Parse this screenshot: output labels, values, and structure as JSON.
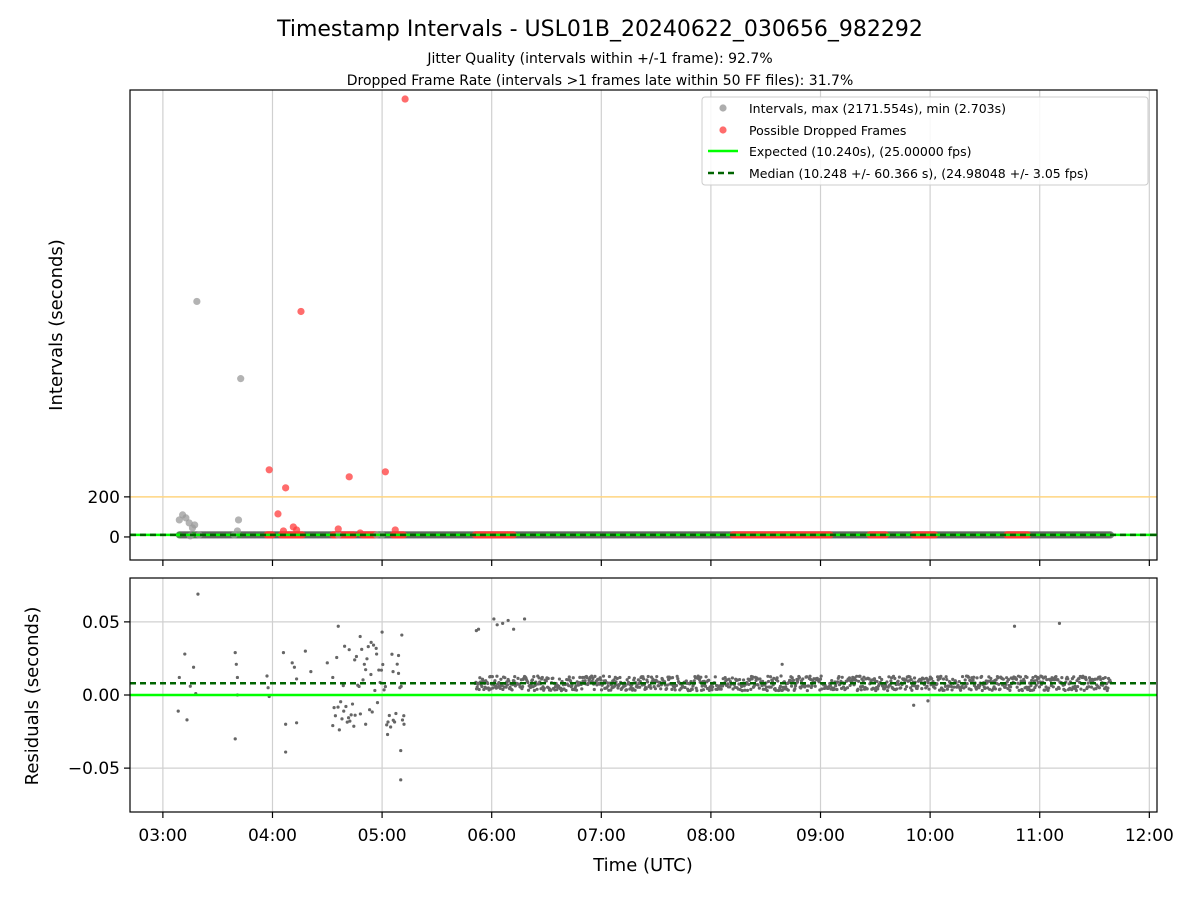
{
  "chart_data": {
    "type": "scatter",
    "title": "Timestamp Intervals - USL01B_20240622_030656_982292",
    "subtitle_1": "Jitter Quality (intervals within +/-1 frame): 92.7%",
    "subtitle_2": "Dropped Frame Rate (intervals >1 frames late within 50 FF files): 31.7%",
    "xlabel": "Time (UTC)",
    "x_ticks": [
      "03:00",
      "04:00",
      "05:00",
      "06:00",
      "07:00",
      "08:00",
      "09:00",
      "10:00",
      "11:00",
      "12:00"
    ],
    "x_range_hours": [
      2.7,
      12.07
    ],
    "grid": true,
    "legend_position": "top-right",
    "top_panel": {
      "ylabel": "Intervals (seconds)",
      "y_ticks": [
        200,
        0
      ],
      "ylim": [
        -115,
        2230
      ],
      "threshold_line": 200,
      "threshold_color": "#ffd580",
      "expected_value": 10.24,
      "median_value": 10.248,
      "legend": [
        "Intervals, max (2171.554s), min (2.703s)",
        "Possible Dropped Frames",
        "Expected (10.240s), (25.00000 fps)",
        "Median (10.248 +/- 60.366 s), (24.98048 +/- 3.05 fps)"
      ],
      "series": [
        {
          "name": "Intervals, max (2171.554s), min (2.703s)",
          "color": "#999999",
          "points": [
            [
              3.15,
              85
            ],
            [
              3.18,
              110
            ],
            [
              3.21,
              95
            ],
            [
              3.24,
              70
            ],
            [
              3.27,
              45
            ],
            [
              3.29,
              60
            ],
            [
              3.33,
              10
            ],
            [
              3.25,
              5
            ],
            [
              3.31,
              1175
            ],
            [
              3.65,
              10
            ],
            [
              3.68,
              30
            ],
            [
              3.69,
              85
            ],
            [
              3.71,
              790
            ],
            [
              4.6,
              10
            ],
            [
              4.95,
              10
            ],
            [
              5.0,
              10
            ]
          ],
          "band": {
            "x_start": 3.15,
            "x_end": 11.65,
            "y": 10.24,
            "color": "#666666"
          }
        },
        {
          "name": "Possible Dropped Frames",
          "color": "#ff3b3b",
          "points": [
            [
              5.21,
              2185
            ],
            [
              4.26,
              1125
            ],
            [
              3.97,
              335
            ],
            [
              5.03,
              325
            ],
            [
              4.7,
              300
            ],
            [
              4.12,
              245
            ],
            [
              4.05,
              115
            ],
            [
              4.19,
              50
            ],
            [
              4.22,
              35
            ],
            [
              4.1,
              30
            ],
            [
              4.6,
              40
            ],
            [
              4.8,
              20
            ],
            [
              5.12,
              35
            ]
          ],
          "baseline_clusters": [
            [
              3.95,
              4.0
            ],
            [
              4.08,
              4.28
            ],
            [
              4.55,
              4.75
            ],
            [
              4.82,
              4.95
            ],
            [
              5.1,
              5.2
            ],
            [
              5.85,
              6.2
            ],
            [
              8.2,
              9.1
            ],
            [
              9.45,
              9.6
            ],
            [
              9.85,
              10.05
            ],
            [
              10.7,
              10.9
            ]
          ]
        }
      ]
    },
    "bottom_panel": {
      "ylabel": "Residuals (seconds)",
      "y_ticks": [
        0.05,
        0.0,
        -0.05
      ],
      "y_tick_labels": [
        "0.05",
        "0.00",
        "−0.05"
      ],
      "ylim": [
        -0.08,
        0.08
      ],
      "expected_value": 0.0,
      "median_value": 0.008,
      "series_color": "#666666",
      "dense_band": {
        "x_start": 5.85,
        "x_end": 11.65,
        "y_center": 0.008,
        "spread": 0.005
      },
      "points": [
        [
          3.32,
          0.069
        ],
        [
          3.15,
          0.012
        ],
        [
          3.2,
          0.028
        ],
        [
          3.22,
          -0.017
        ],
        [
          3.28,
          0.019
        ],
        [
          3.14,
          -0.011
        ],
        [
          3.25,
          0.006
        ],
        [
          3.3,
          0.001
        ],
        [
          3.66,
          0.029
        ],
        [
          3.66,
          -0.03
        ],
        [
          3.67,
          0.021
        ],
        [
          3.68,
          0.012
        ],
        [
          3.68,
          0.0
        ],
        [
          3.95,
          0.013
        ],
        [
          3.96,
          0.005
        ],
        [
          3.97,
          -0.001
        ],
        [
          4.1,
          0.029
        ],
        [
          4.12,
          -0.039
        ],
        [
          4.12,
          -0.02
        ],
        [
          4.18,
          0.022
        ],
        [
          4.2,
          0.019
        ],
        [
          4.22,
          -0.019
        ],
        [
          4.22,
          0.011
        ],
        [
          4.3,
          0.03
        ],
        [
          4.35,
          0.016
        ],
        [
          4.5,
          0.022
        ],
        [
          4.55,
          0.012
        ],
        [
          4.6,
          0.047
        ],
        [
          4.65,
          -0.011
        ],
        [
          4.7,
          0.031
        ],
        [
          4.75,
          0.024
        ],
        [
          4.8,
          0.04
        ],
        [
          4.85,
          -0.02
        ],
        [
          4.9,
          0.036
        ],
        [
          4.95,
          0.028
        ],
        [
          5.0,
          0.043
        ],
        [
          5.05,
          -0.027
        ],
        [
          5.1,
          0.016
        ],
        [
          5.15,
          0.027
        ],
        [
          5.18,
          0.041
        ],
        [
          5.17,
          -0.038
        ],
        [
          5.17,
          -0.058
        ],
        [
          5.2,
          -0.02
        ],
        [
          5.86,
          0.044
        ],
        [
          5.88,
          0.045
        ],
        [
          6.02,
          0.052
        ],
        [
          6.05,
          0.048
        ],
        [
          6.1,
          0.049
        ],
        [
          6.15,
          0.051
        ],
        [
          6.3,
          0.052
        ],
        [
          6.2,
          0.045
        ],
        [
          8.65,
          0.021
        ],
        [
          9.85,
          -0.007
        ],
        [
          9.98,
          -0.004
        ],
        [
          10.77,
          0.047
        ],
        [
          11.18,
          0.049
        ]
      ]
    }
  }
}
